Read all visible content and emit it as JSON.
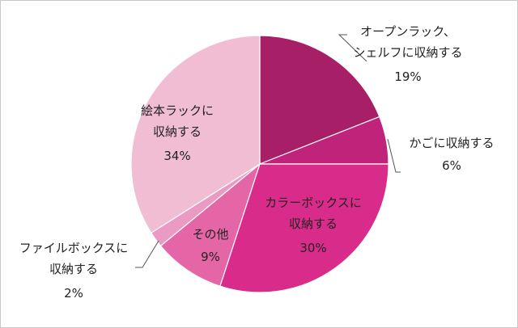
{
  "chart_data": {
    "type": "pie",
    "title": "",
    "start_angle_deg": 0,
    "direction": "clockwise",
    "slices": [
      {
        "label_lines": [
          "オープンラック、",
          "シェルフに収納する"
        ],
        "value": 19,
        "value_label": "19%",
        "color": "#a61f67"
      },
      {
        "label_lines": [
          "かごに収納する"
        ],
        "value": 6,
        "value_label": "6%",
        "color": "#c0237a"
      },
      {
        "label_lines": [
          "カラーボックスに",
          "収納する"
        ],
        "value": 30,
        "value_label": "30%",
        "color": "#d92b8a"
      },
      {
        "label_lines": [
          "その他"
        ],
        "value": 9,
        "value_label": "9%",
        "color": "#e466a6"
      },
      {
        "label_lines": [
          "ファイルボックスに",
          "収納する"
        ],
        "value": 2,
        "value_label": "2%",
        "color": "#ea9ac3"
      },
      {
        "label_lines": [
          "絵本ラックに",
          "収納する"
        ],
        "value": 34,
        "value_label": "34%",
        "color": "#f0bdd3"
      }
    ]
  }
}
